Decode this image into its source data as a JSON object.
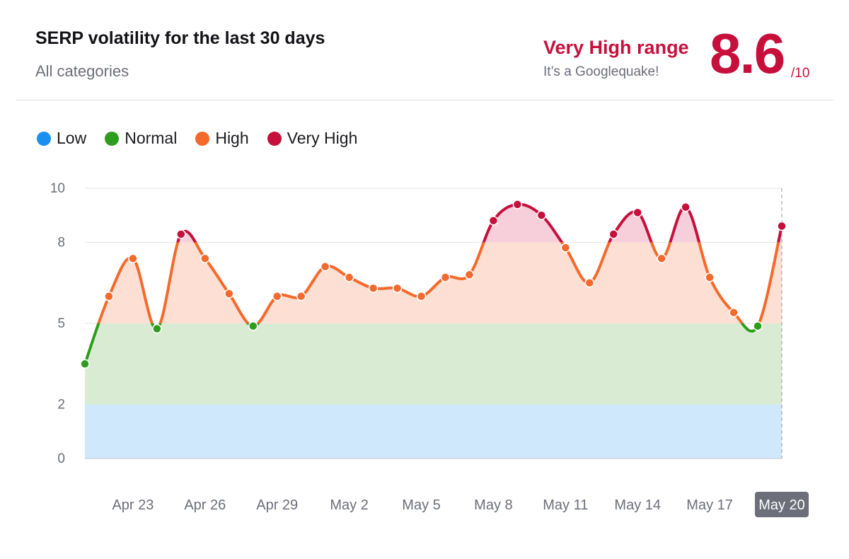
{
  "header": {
    "title": "SERP volatility for the last 30 days",
    "subtitle": "All categories",
    "range_label": "Very High range",
    "range_quip": "It’s a Googlequake!",
    "score": "8.6",
    "score_max": "/10"
  },
  "legend": [
    {
      "label": "Low",
      "color": "#1a8ff0"
    },
    {
      "label": "Normal",
      "color": "#2e9d1d"
    },
    {
      "label": "High",
      "color": "#f46a2c"
    },
    {
      "label": "Very High",
      "color": "#c70f3c"
    }
  ],
  "colors": {
    "low_band": "#cfe8fc",
    "normal_band": "#d9ecd3",
    "high_band": "#fde0d3",
    "very_high_band": "#f7cfda",
    "normal_line": "#2e9d1d",
    "high_line": "#f46a2c",
    "very_high_line": "#c70f3c",
    "grid": "#e1e3e8",
    "tick_text": "#6c6e79",
    "selected_label_bg": "#6c6e79"
  },
  "chart_data": {
    "type": "line",
    "title": "SERP volatility for the last 30 days",
    "subtitle": "All categories",
    "xlabel": "",
    "ylabel": "",
    "ylim": [
      0,
      10
    ],
    "yticks": [
      0,
      2,
      5,
      8,
      10
    ],
    "grid": true,
    "legend_position": "top-left",
    "bands": [
      {
        "name": "Low",
        "from": 0,
        "to": 2
      },
      {
        "name": "Normal",
        "from": 2,
        "to": 5
      },
      {
        "name": "High",
        "from": 5,
        "to": 8
      },
      {
        "name": "Very High",
        "from": 8,
        "to": 10
      }
    ],
    "x": [
      "Apr 21",
      "Apr 22",
      "Apr 23",
      "Apr 24",
      "Apr 25",
      "Apr 26",
      "Apr 27",
      "Apr 28",
      "Apr 29",
      "Apr 30",
      "May 1",
      "May 2",
      "May 3",
      "May 4",
      "May 5",
      "May 6",
      "May 7",
      "May 8",
      "May 9",
      "May 10",
      "May 11",
      "May 12",
      "May 13",
      "May 14",
      "May 15",
      "May 16",
      "May 17",
      "May 18",
      "May 19",
      "May 20"
    ],
    "values": [
      3.5,
      6.0,
      7.4,
      4.8,
      8.3,
      7.4,
      6.1,
      4.9,
      6.0,
      6.0,
      7.1,
      6.7,
      6.3,
      6.3,
      6.0,
      6.7,
      6.8,
      8.8,
      9.4,
      9.0,
      7.8,
      6.5,
      8.3,
      9.1,
      7.4,
      9.3,
      6.7,
      5.4,
      4.9,
      8.6
    ],
    "xtick_labels": [
      "Apr 23",
      "Apr 26",
      "Apr 29",
      "May 2",
      "May 5",
      "May 8",
      "May 11",
      "May 14",
      "May 17",
      "May 20"
    ],
    "selected_x": "May 20"
  }
}
